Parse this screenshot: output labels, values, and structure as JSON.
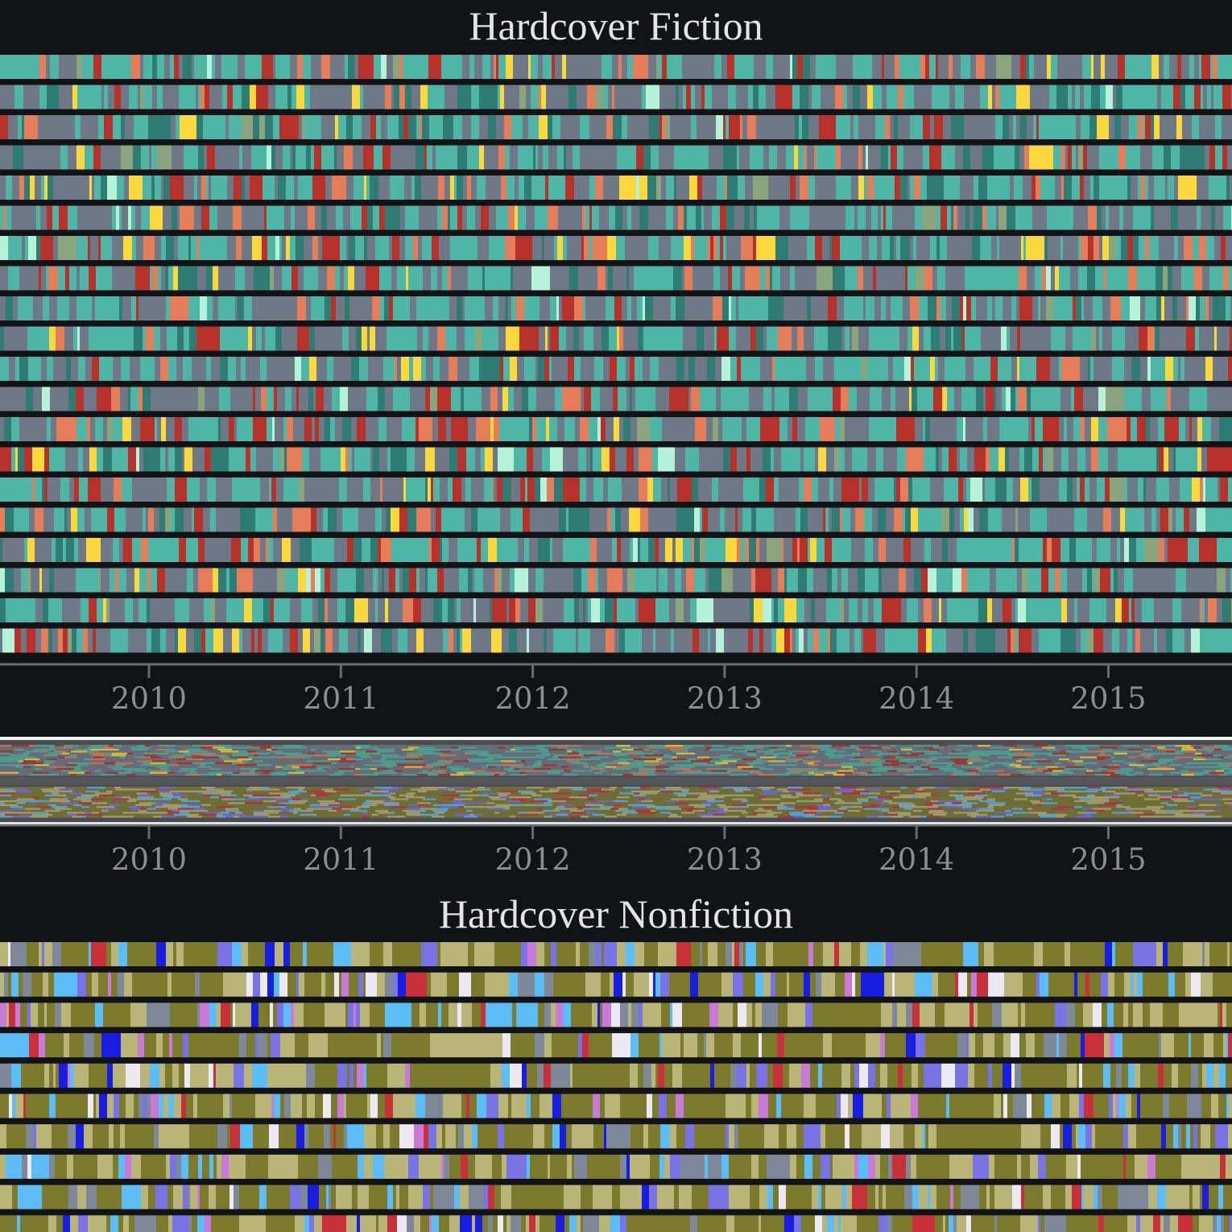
{
  "fiction": {
    "title": "Hardcover Fiction",
    "palette": {
      "gray": "#6f7887",
      "teal": "#4fb5a6",
      "dark-teal": "#2e7c74",
      "red": "#b7322a",
      "salmon": "#e57d5a",
      "yellow": "#fbd93e",
      "pale-mint": "#b5f2d9",
      "sage": "#8aa57e"
    }
  },
  "nonfiction": {
    "title": "Hardcover Nonfiction",
    "palette": {
      "olive": "#7c7a2c",
      "khaki": "#b9b477",
      "slate": "#7f8899",
      "sky-blue": "#5bbcf6",
      "periwinkle": "#7a73e6",
      "blue": "#1a1ee0",
      "white": "#ece9f3",
      "red": "#c9313a",
      "orchid": "#c77ad6"
    }
  },
  "chart_data": [
    {
      "type": "heatmap",
      "title": "Hardcover Fiction",
      "description_kind": "weekly bestseller ranks over time; each band a rank position, each stripe a week colored by book category",
      "x_tick_labels": [
        "2010",
        "2011",
        "2012",
        "2013",
        "2014",
        "2015"
      ],
      "x_range": [
        "2009-03",
        "2015-09"
      ],
      "rows": 20
    },
    {
      "type": "heatmap",
      "title": "Hardcover Nonfiction",
      "x_tick_labels": [
        "2010",
        "2011",
        "2012",
        "2013",
        "2014",
        "2015"
      ],
      "x_range": [
        "2009-03",
        "2015-09"
      ],
      "rows": 10
    }
  ],
  "axis": {
    "ticks": [
      "2010",
      "2011",
      "2012",
      "2013",
      "2014",
      "2015"
    ]
  }
}
